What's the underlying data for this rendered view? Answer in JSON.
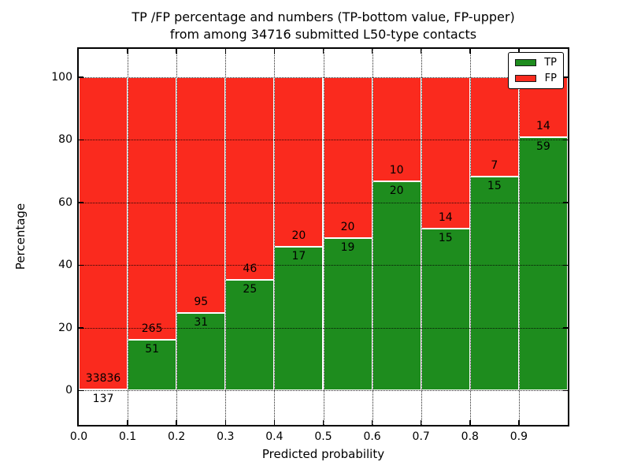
{
  "chart_data": {
    "type": "bar",
    "stacked": true,
    "title": "TP /FP percentage and numbers (TP-bottom value, FP-upper) from among 34716 submitted L50-type contacts",
    "title_line1": "TP /FP percentage and numbers (TP-bottom value, FP-upper)",
    "title_line2": "from among 34716 submitted L50-type contacts",
    "xlabel": "Predicted probability",
    "ylabel": "Percentage",
    "total_contacts": 34716,
    "bin_width": 0.1,
    "bin_starts": [
      0.0,
      0.1,
      0.2,
      0.3,
      0.4,
      0.5,
      0.6,
      0.7,
      0.8,
      0.9
    ],
    "x_tick_labels": [
      "0.0",
      "0.1",
      "0.2",
      "0.3",
      "0.4",
      "0.5",
      "0.6",
      "0.7",
      "0.8",
      "0.9"
    ],
    "y_ticks": [
      0,
      20,
      40,
      60,
      80,
      100
    ],
    "y_tick_labels": [
      "0",
      "20",
      "40",
      "60",
      "80",
      "100"
    ],
    "xlim": [
      0.0,
      1.0
    ],
    "ylim": [
      -11,
      109
    ],
    "grid": true,
    "legend_position": "upper right",
    "series": [
      {
        "name": "TP",
        "color": "#1e8c1e",
        "counts": [
          137,
          51,
          31,
          25,
          17,
          19,
          20,
          15,
          15,
          59
        ]
      },
      {
        "name": "FP",
        "color": "#fa2a1e",
        "counts": [
          33836,
          265,
          95,
          46,
          20,
          20,
          10,
          14,
          7,
          14
        ]
      }
    ],
    "tp_percent": [
      0.4,
      16.14,
      24.6,
      35.21,
      45.95,
      48.72,
      66.67,
      51.72,
      68.18,
      80.82
    ]
  },
  "colors": {
    "tp_green": "#1e8c1e",
    "fp_red": "#fa2a1e",
    "grid": "#000000",
    "text": "#000000",
    "background": "#ffffff"
  }
}
